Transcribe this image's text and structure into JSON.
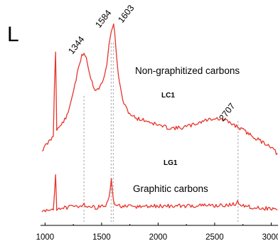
{
  "panel_label": "L",
  "colors": {
    "spectrum": "#e8342b",
    "axis": "#000000",
    "guide": "#8a8a8a"
  },
  "chart_data": {
    "type": "line",
    "xlabel": "",
    "ylabel": "",
    "xlim": [
      960,
      3060
    ],
    "x_ticks": [
      1000,
      1500,
      2000,
      2500,
      3000
    ],
    "y_axis_shown": false,
    "grid": false,
    "peak_labels": [
      {
        "text": "1344",
        "x": 1344
      },
      {
        "text": "1584",
        "x": 1584
      },
      {
        "text": "1603",
        "x": 1603
      },
      {
        "text": "2707",
        "x": 2707
      }
    ],
    "annotations": [
      {
        "text": "Non-graphitized carbons"
      },
      {
        "text": "Graphitic carbons"
      }
    ],
    "series": [
      {
        "name": "LC1",
        "x": [
          960,
          1000,
          1050,
          1080,
          1085,
          1090,
          1095,
          1100,
          1150,
          1200,
          1250,
          1300,
          1320,
          1344,
          1360,
          1380,
          1400,
          1440,
          1480,
          1520,
          1550,
          1570,
          1584,
          1590,
          1603,
          1615,
          1630,
          1660,
          1700,
          1750,
          1800,
          1900,
          2000,
          2100,
          2200,
          2300,
          2400,
          2500,
          2600,
          2700,
          2800,
          2900,
          3000,
          3060
        ],
        "y": [
          0.02,
          0.06,
          0.11,
          0.14,
          0.7,
          1.0,
          0.6,
          0.17,
          0.22,
          0.28,
          0.45,
          0.62,
          0.69,
          0.72,
          0.7,
          0.63,
          0.55,
          0.46,
          0.47,
          0.53,
          0.66,
          0.8,
          0.87,
          0.89,
          0.92,
          0.88,
          0.7,
          0.49,
          0.35,
          0.29,
          0.26,
          0.24,
          0.21,
          0.19,
          0.19,
          0.21,
          0.24,
          0.26,
          0.24,
          0.2,
          0.15,
          0.1,
          0.06,
          0.0
        ]
      },
      {
        "name": "LG1",
        "x": [
          960,
          1000,
          1050,
          1080,
          1085,
          1090,
          1095,
          1100,
          1150,
          1200,
          1300,
          1344,
          1380,
          1450,
          1540,
          1570,
          1584,
          1598,
          1620,
          1700,
          1800,
          2000,
          2200,
          2400,
          2600,
          2680,
          2707,
          2730,
          2800,
          2900,
          3000,
          3060
        ],
        "y": [
          0.0,
          0.03,
          0.05,
          0.06,
          0.45,
          0.95,
          0.4,
          0.07,
          0.08,
          0.09,
          0.11,
          0.14,
          0.1,
          0.09,
          0.12,
          0.25,
          0.55,
          0.25,
          0.13,
          0.1,
          0.1,
          0.11,
          0.11,
          0.12,
          0.12,
          0.14,
          0.17,
          0.14,
          0.1,
          0.08,
          0.07,
          0.06
        ]
      }
    ]
  }
}
